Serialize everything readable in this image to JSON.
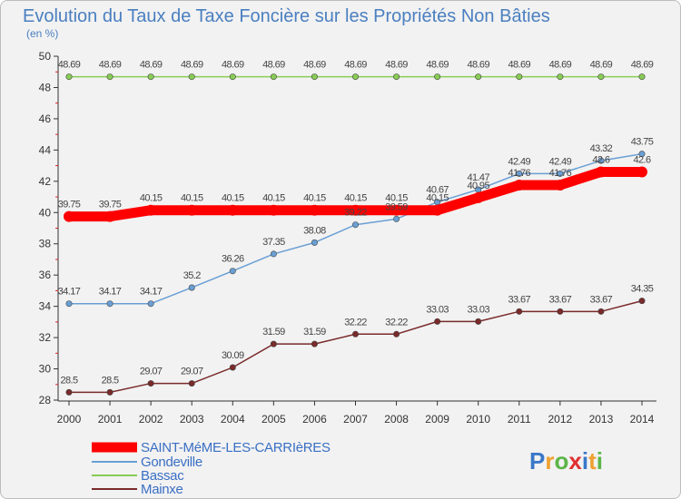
{
  "chart_data": {
    "type": "line",
    "title": "Evolution du Taux de Taxe Foncière sur les Propriétés Non Bâties",
    "subtitle": "(en %)",
    "xlabel": "",
    "ylabel": "",
    "ylim": [
      28,
      50
    ],
    "yticks": [
      28,
      30,
      32,
      34,
      36,
      38,
      40,
      42,
      44,
      46,
      48,
      50
    ],
    "x": [
      "2000",
      "2001",
      "2002",
      "2003",
      "2004",
      "2005",
      "2006",
      "2007",
      "2008",
      "2009",
      "2010",
      "2011",
      "2012",
      "2013",
      "2014"
    ],
    "grid": false,
    "legend_position": "bottom-left",
    "series": [
      {
        "key": "saint-meme",
        "name": "SAINT-MéME-LES-CARRIèRES",
        "color": "#ff0000",
        "values": [
          39.75,
          39.75,
          40.15,
          40.15,
          40.15,
          40.15,
          40.15,
          40.15,
          40.15,
          40.15,
          40.95,
          41.76,
          41.76,
          42.6,
          42.6
        ],
        "labels": [
          "39.75",
          "39.75",
          "40.15",
          "40.15",
          "40.15",
          "40.15",
          "40.15",
          "40.15",
          "40.15",
          "40.15",
          "40.95",
          "41.76",
          "41.76",
          "42.6",
          "42.6"
        ]
      },
      {
        "key": "gondeville",
        "name": "Gondeville",
        "color": "#6a9fd4",
        "values": [
          34.17,
          34.17,
          34.17,
          35.2,
          36.26,
          37.35,
          38.08,
          39.22,
          39.59,
          40.67,
          41.47,
          42.49,
          42.49,
          43.32,
          43.75
        ],
        "labels": [
          "34.17",
          "34.17",
          "34.17",
          "35.2",
          "36.26",
          "37.35",
          "38.08",
          "39.22",
          "39.59",
          "40.67",
          "41.47",
          "42.49",
          "42.49",
          "43.32",
          "43.75"
        ]
      },
      {
        "key": "bassac",
        "name": "Bassac",
        "color": "#88cc55",
        "values": [
          48.69,
          48.69,
          48.69,
          48.69,
          48.69,
          48.69,
          48.69,
          48.69,
          48.69,
          48.69,
          48.69,
          48.69,
          48.69,
          48.69,
          48.69
        ],
        "labels": [
          "48.69",
          "48.69",
          "48.69",
          "48.69",
          "48.69",
          "48.69",
          "48.69",
          "48.69",
          "48.69",
          "48.69",
          "48.69",
          "48.69",
          "48.69",
          "48.69",
          "48.69"
        ]
      },
      {
        "key": "mainxe",
        "name": "Mainxe",
        "color": "#7a2a2a",
        "values": [
          28.5,
          28.5,
          29.07,
          29.07,
          30.09,
          31.59,
          31.59,
          32.22,
          32.22,
          33.03,
          33.03,
          33.67,
          33.67,
          33.67,
          34.35
        ],
        "labels": [
          "28.5",
          "28.5",
          "29.07",
          "29.07",
          "30.09",
          "31.59",
          "31.59",
          "32.22",
          "32.22",
          "33.03",
          "33.03",
          "33.67",
          "33.67",
          "33.67",
          "34.35"
        ]
      }
    ]
  },
  "logo": {
    "text": "Proxiti",
    "colors": [
      "#3a78c8",
      "#f0a030",
      "#5cb548",
      "#e03030",
      "#3a78c8",
      "#f0a030",
      "#5cb548"
    ]
  }
}
